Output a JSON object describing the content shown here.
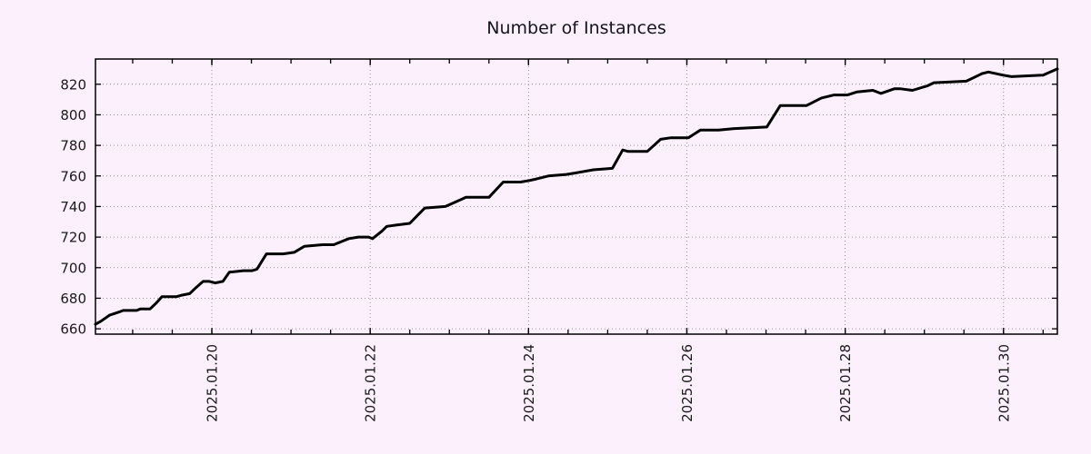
{
  "page": {
    "background_color": "#fbf0fb"
  },
  "chart_data": {
    "type": "line",
    "title": "Number of Instances",
    "legend": {
      "show": false
    },
    "grid": {
      "show": true,
      "style": "dotted",
      "color": "#9a9a9a"
    },
    "plot_bg": "#fbf0fb",
    "border_color": "#000000",
    "x_axis": {
      "kind": "time",
      "unit": "days since 2025-01-18 00:00",
      "range": [
        0.53,
        12.68
      ],
      "major_ticks": [
        {
          "t": 2,
          "label": "2025.01.20"
        },
        {
          "t": 4,
          "label": "2025.01.22"
        },
        {
          "t": 6,
          "label": "2025.01.24"
        },
        {
          "t": 8,
          "label": "2025.01.26"
        },
        {
          "t": 10,
          "label": "2025.01.28"
        },
        {
          "t": 12,
          "label": "2025.01.30"
        }
      ],
      "minor_tick_step": 0.5,
      "label_rotation_deg": -90
    },
    "y_axis": {
      "range": [
        656.5,
        836.5
      ],
      "ticks": [
        660,
        680,
        700,
        720,
        740,
        760,
        780,
        800,
        820
      ]
    },
    "series": [
      {
        "name": "instances",
        "color": "#000000",
        "line_width": 3,
        "points": [
          [
            0.53,
            663
          ],
          [
            0.6,
            665
          ],
          [
            0.71,
            669
          ],
          [
            0.83,
            671
          ],
          [
            0.88,
            672
          ],
          [
            1.05,
            672
          ],
          [
            1.1,
            673
          ],
          [
            1.22,
            673
          ],
          [
            1.3,
            677
          ],
          [
            1.37,
            681
          ],
          [
            1.55,
            681
          ],
          [
            1.62,
            682
          ],
          [
            1.72,
            683
          ],
          [
            1.8,
            687
          ],
          [
            1.89,
            691
          ],
          [
            1.97,
            691
          ],
          [
            2.04,
            690
          ],
          [
            2.14,
            691
          ],
          [
            2.22,
            697
          ],
          [
            2.4,
            698
          ],
          [
            2.51,
            698
          ],
          [
            2.57,
            699
          ],
          [
            2.69,
            709
          ],
          [
            2.9,
            709
          ],
          [
            3.04,
            710
          ],
          [
            3.17,
            714
          ],
          [
            3.4,
            715
          ],
          [
            3.54,
            715
          ],
          [
            3.73,
            719
          ],
          [
            3.85,
            720
          ],
          [
            3.98,
            720
          ],
          [
            4.03,
            719
          ],
          [
            4.15,
            724
          ],
          [
            4.21,
            727
          ],
          [
            4.35,
            728
          ],
          [
            4.5,
            729
          ],
          [
            4.69,
            739
          ],
          [
            4.95,
            740
          ],
          [
            5.08,
            743
          ],
          [
            5.21,
            746
          ],
          [
            5.5,
            746
          ],
          [
            5.68,
            756
          ],
          [
            5.9,
            756
          ],
          [
            6.01,
            757
          ],
          [
            6.1,
            758
          ],
          [
            6.25,
            760
          ],
          [
            6.48,
            761
          ],
          [
            6.6,
            762
          ],
          [
            6.82,
            764
          ],
          [
            7.06,
            765
          ],
          [
            7.19,
            777
          ],
          [
            7.26,
            776
          ],
          [
            7.5,
            776
          ],
          [
            7.67,
            784
          ],
          [
            7.8,
            785
          ],
          [
            8.02,
            785
          ],
          [
            8.17,
            790
          ],
          [
            8.4,
            790
          ],
          [
            8.6,
            791
          ],
          [
            9.01,
            792
          ],
          [
            9.18,
            806
          ],
          [
            9.51,
            806
          ],
          [
            9.7,
            811
          ],
          [
            9.86,
            813
          ],
          [
            10.03,
            813
          ],
          [
            10.15,
            815
          ],
          [
            10.35,
            816
          ],
          [
            10.45,
            814
          ],
          [
            10.62,
            817
          ],
          [
            10.7,
            817
          ],
          [
            10.85,
            816
          ],
          [
            11.04,
            819
          ],
          [
            11.12,
            821
          ],
          [
            11.53,
            822
          ],
          [
            11.69,
            826
          ],
          [
            11.73,
            827
          ],
          [
            11.81,
            828
          ],
          [
            11.99,
            826
          ],
          [
            12.1,
            825
          ],
          [
            12.5,
            826
          ],
          [
            12.68,
            830
          ]
        ]
      }
    ]
  }
}
